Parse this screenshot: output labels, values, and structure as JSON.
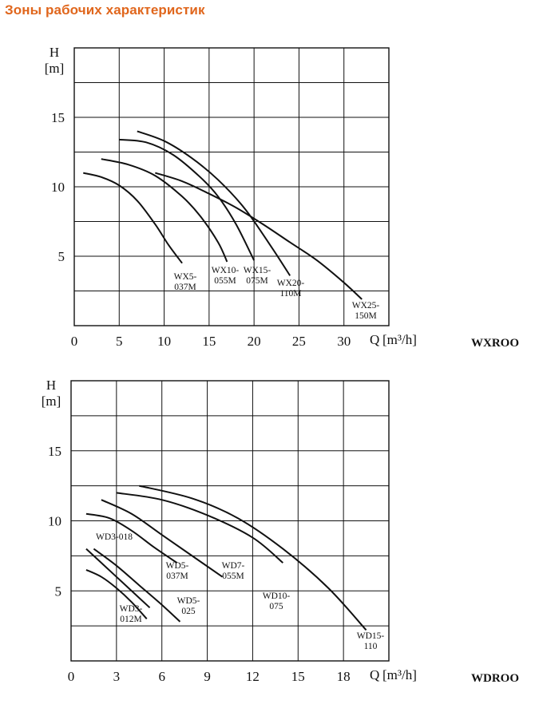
{
  "page": {
    "title": "Зоны рабочих характеристик"
  },
  "chart_data": [
    {
      "type": "line",
      "series_name": "WXROO",
      "ylabel_top": "H",
      "ylabel_unit": "[m]",
      "xlabel": "Q",
      "xlabel_unit": "[m³/h]",
      "xlim": [
        0,
        35
      ],
      "ylim": [
        0,
        20
      ],
      "x_ticks": [
        0,
        5,
        10,
        15,
        20,
        25,
        30
      ],
      "y_ticks": [
        5,
        10,
        15
      ],
      "grid": true,
      "series": [
        {
          "name": "WX5-037M",
          "label_lines": [
            "WX5-",
            "037M"
          ],
          "x": [
            1,
            3,
            5,
            7,
            9,
            10.5,
            12
          ],
          "y": [
            11,
            10.7,
            10.1,
            9.0,
            7.3,
            5.8,
            4.5
          ]
        },
        {
          "name": "WX10-055M",
          "label_lines": [
            "WX10-",
            "055M"
          ],
          "x": [
            3,
            6,
            9,
            12,
            14,
            16,
            17
          ],
          "y": [
            12,
            11.6,
            10.8,
            9.3,
            7.9,
            6.0,
            4.6
          ]
        },
        {
          "name": "WX15-075M",
          "label_lines": [
            "WX15-",
            "075M"
          ],
          "x": [
            5,
            8,
            11,
            14,
            16,
            18,
            20
          ],
          "y": [
            13.4,
            13.2,
            12.3,
            10.7,
            9.3,
            7.3,
            4.7
          ]
        },
        {
          "name": "WX20-110M",
          "label_lines": [
            "WX20-",
            "110M"
          ],
          "x": [
            7,
            10,
            13,
            16,
            19,
            22,
            24
          ],
          "y": [
            14,
            13.3,
            12.1,
            10.5,
            8.4,
            5.6,
            3.6
          ]
        },
        {
          "name": "WX25-150M",
          "label_lines": [
            "WX25-",
            "150M"
          ],
          "x": [
            9,
            12,
            15,
            18,
            21,
            24,
            27,
            30,
            32
          ],
          "y": [
            11,
            10.4,
            9.5,
            8.5,
            7.3,
            6.0,
            4.7,
            3.1,
            1.9
          ]
        }
      ]
    },
    {
      "type": "line",
      "series_name": "WDROO",
      "ylabel_top": "H",
      "ylabel_unit": "[m]",
      "xlabel": "Q",
      "xlabel_unit": "[m³/h]",
      "xlim": [
        0,
        21
      ],
      "ylim": [
        0,
        20
      ],
      "x_ticks": [
        0,
        3,
        6,
        9,
        12,
        15,
        18
      ],
      "y_ticks": [
        5,
        10,
        15
      ],
      "grid": true,
      "series": [
        {
          "name": "WD3-012M",
          "label_lines": [
            "WD3-",
            "012M"
          ],
          "x": [
            1,
            2,
            3,
            4,
            5
          ],
          "y": [
            6.5,
            6.0,
            5.2,
            4.2,
            3.0
          ]
        },
        {
          "name": "WD3-018",
          "label_lines": [
            "WD3-018"
          ],
          "x": [
            1,
            2,
            3,
            4,
            5.2
          ],
          "y": [
            8.0,
            7.0,
            6.0,
            5.0,
            3.8
          ]
        },
        {
          "name": "WD5-025",
          "label_lines": [
            "WD5-",
            "025"
          ],
          "x": [
            1.5,
            3,
            4.5,
            6,
            7.2
          ],
          "y": [
            8.0,
            6.8,
            5.4,
            4.0,
            2.8
          ]
        },
        {
          "name": "WD5-037M",
          "label_lines": [
            "WD5-",
            "037M"
          ],
          "x": [
            1,
            2.5,
            4,
            5.5,
            7
          ],
          "y": [
            10.5,
            10.2,
            9.3,
            8.1,
            7.0
          ]
        },
        {
          "name": "WD7-055M",
          "label_lines": [
            "WD7-",
            "055M"
          ],
          "x": [
            2,
            4,
            6,
            8,
            10
          ],
          "y": [
            11.5,
            10.5,
            9.0,
            7.5,
            6.0
          ]
        },
        {
          "name": "WD10-075",
          "label_lines": [
            "WD10-",
            "075"
          ],
          "x": [
            3,
            6,
            9,
            12,
            14
          ],
          "y": [
            12.0,
            11.5,
            10.4,
            8.8,
            7.0
          ]
        },
        {
          "name": "WD15-110",
          "label_lines": [
            "WD15-",
            "110"
          ],
          "x": [
            4.5,
            8,
            11,
            14,
            17,
            19.5
          ],
          "y": [
            12.5,
            11.6,
            10.2,
            8.0,
            5.2,
            2.2
          ]
        }
      ]
    }
  ]
}
